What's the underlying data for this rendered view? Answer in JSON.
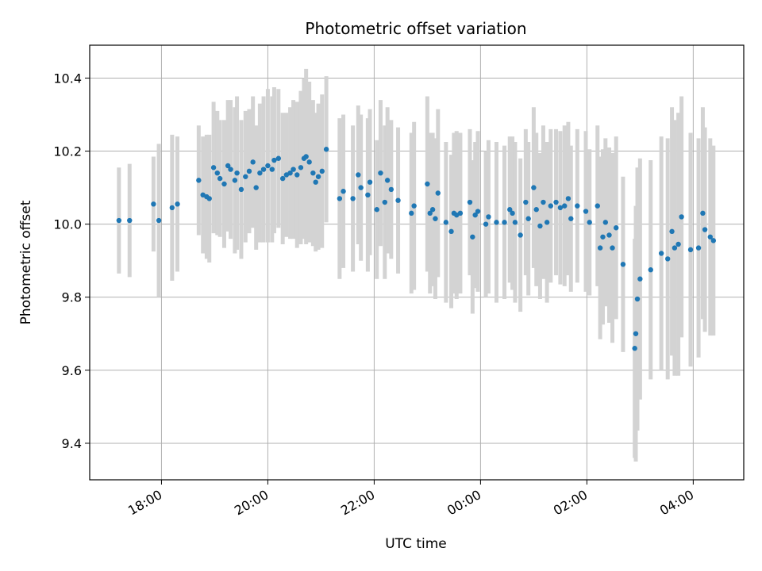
{
  "chart_data": {
    "type": "scatter",
    "title": "Photometric offset variation",
    "xlabel": "UTC time",
    "ylabel": "Photometric offset",
    "x_unit": "hours",
    "xlim": [
      16.65,
      28.95
    ],
    "ylim": [
      9.3,
      10.49
    ],
    "x_ticks": [
      {
        "value": 18,
        "label": "18:00"
      },
      {
        "value": 20,
        "label": "20:00"
      },
      {
        "value": 22,
        "label": "22:00"
      },
      {
        "value": 24,
        "label": "00:00"
      },
      {
        "value": 26,
        "label": "02:00"
      },
      {
        "value": 28,
        "label": "04:00"
      }
    ],
    "y_ticks": [
      {
        "value": 9.4,
        "label": "9.4"
      },
      {
        "value": 9.6,
        "label": "9.6"
      },
      {
        "value": 9.8,
        "label": "9.8"
      },
      {
        "value": 10.0,
        "label": "10.0"
      },
      {
        "value": 10.2,
        "label": "10.2"
      },
      {
        "value": 10.4,
        "label": "10.4"
      }
    ],
    "grid": true,
    "colors": {
      "points": "#1f77b4",
      "errorbars": "#d3d3d3",
      "grid": "#b0b0b0"
    },
    "series": [
      {
        "x": [
          17.2,
          17.4,
          17.85,
          17.95,
          18.2,
          18.3,
          18.7,
          18.78,
          18.85,
          18.9,
          18.98,
          19.05,
          19.1,
          19.18,
          19.25,
          19.3,
          19.38,
          19.42,
          19.5,
          19.58,
          19.65,
          19.72,
          19.78,
          19.85,
          19.92,
          20.0,
          20.08,
          20.12,
          20.2,
          20.28,
          20.35,
          20.42,
          20.48,
          20.55,
          20.62,
          20.68,
          20.72,
          20.78,
          20.85,
          20.9,
          20.95,
          21.02,
          21.1,
          21.35,
          21.42,
          21.6,
          21.7,
          21.75,
          21.88,
          21.92,
          22.05,
          22.12,
          22.2,
          22.25,
          22.32,
          22.45,
          22.7,
          22.75,
          23.0,
          23.05,
          23.1,
          23.15,
          23.2,
          23.35,
          23.45,
          23.5,
          23.55,
          23.62,
          23.8,
          23.85,
          23.9,
          23.95,
          24.1,
          24.15,
          24.3,
          24.45,
          24.55,
          24.6,
          24.65,
          24.75,
          24.85,
          24.9,
          25.0,
          25.05,
          25.12,
          25.18,
          25.25,
          25.32,
          25.42,
          25.5,
          25.58,
          25.65,
          25.7,
          25.82,
          25.98,
          26.05,
          26.2,
          26.25,
          26.3,
          26.35,
          26.42,
          26.48,
          26.55,
          26.68,
          26.9,
          26.92,
          26.95,
          27.0,
          27.2,
          27.4,
          27.52,
          27.6,
          27.65,
          27.72,
          27.78,
          27.95,
          28.1,
          28.18,
          28.22,
          28.32,
          28.38
        ],
        "y": [
          10.01,
          10.01,
          10.055,
          10.01,
          10.045,
          10.055,
          10.12,
          10.08,
          10.075,
          10.07,
          10.155,
          10.14,
          10.125,
          10.11,
          10.16,
          10.15,
          10.12,
          10.14,
          10.095,
          10.13,
          10.145,
          10.17,
          10.1,
          10.14,
          10.15,
          10.16,
          10.15,
          10.175,
          10.18,
          10.125,
          10.135,
          10.14,
          10.15,
          10.135,
          10.155,
          10.18,
          10.185,
          10.17,
          10.14,
          10.115,
          10.13,
          10.145,
          10.205,
          10.07,
          10.09,
          10.07,
          10.135,
          10.1,
          10.08,
          10.115,
          10.04,
          10.14,
          10.06,
          10.12,
          10.095,
          10.065,
          10.03,
          10.05,
          10.11,
          10.03,
          10.04,
          10.015,
          10.085,
          10.005,
          9.98,
          10.03,
          10.025,
          10.03,
          10.06,
          9.965,
          10.025,
          10.035,
          10.0,
          10.02,
          10.005,
          10.005,
          10.04,
          10.03,
          10.005,
          9.97,
          10.06,
          10.015,
          10.1,
          10.04,
          9.995,
          10.06,
          10.005,
          10.05,
          10.06,
          10.045,
          10.05,
          10.07,
          10.015,
          10.05,
          10.035,
          10.005,
          10.05,
          9.935,
          9.965,
          10.005,
          9.97,
          9.935,
          9.99,
          9.89,
          9.66,
          9.7,
          9.795,
          9.85,
          9.875,
          9.92,
          9.905,
          9.98,
          9.935,
          9.945,
          10.02,
          9.93,
          9.935,
          10.03,
          9.985,
          9.965,
          9.955
        ],
        "yerr": [
          0.145,
          0.155,
          0.13,
          0.21,
          0.2,
          0.185,
          0.15,
          0.16,
          0.17,
          0.175,
          0.18,
          0.17,
          0.16,
          0.175,
          0.18,
          0.19,
          0.2,
          0.21,
          0.19,
          0.18,
          0.17,
          0.18,
          0.17,
          0.19,
          0.2,
          0.21,
          0.2,
          0.2,
          0.19,
          0.18,
          0.17,
          0.18,
          0.19,
          0.2,
          0.21,
          0.22,
          0.24,
          0.22,
          0.2,
          0.19,
          0.2,
          0.21,
          0.2,
          0.22,
          0.21,
          0.2,
          0.19,
          0.2,
          0.21,
          0.2,
          0.19,
          0.2,
          0.21,
          0.2,
          0.19,
          0.2,
          0.22,
          0.23,
          0.24,
          0.22,
          0.21,
          0.22,
          0.23,
          0.22,
          0.21,
          0.22,
          0.23,
          0.22,
          0.2,
          0.21,
          0.2,
          0.22,
          0.2,
          0.21,
          0.22,
          0.21,
          0.2,
          0.21,
          0.22,
          0.21,
          0.2,
          0.21,
          0.22,
          0.21,
          0.2,
          0.21,
          0.22,
          0.21,
          0.2,
          0.21,
          0.22,
          0.21,
          0.2,
          0.21,
          0.22,
          0.2,
          0.22,
          0.25,
          0.24,
          0.23,
          0.24,
          0.26,
          0.25,
          0.24,
          0.3,
          0.35,
          0.36,
          0.33,
          0.3,
          0.32,
          0.33,
          0.34,
          0.35,
          0.36,
          0.33,
          0.32,
          0.3,
          0.29,
          0.28,
          0.27,
          0.26
        ]
      }
    ]
  }
}
